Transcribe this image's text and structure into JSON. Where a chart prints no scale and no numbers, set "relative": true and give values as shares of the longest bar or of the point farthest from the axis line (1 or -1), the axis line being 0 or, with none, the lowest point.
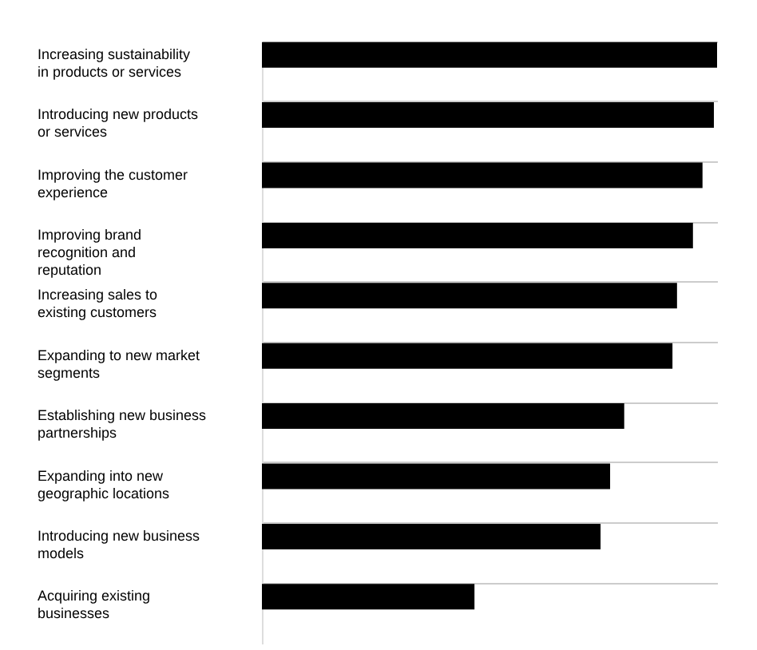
{
  "chart_data": {
    "type": "bar",
    "orientation": "horizontal",
    "relative": true,
    "grid": true,
    "categories": [
      "Increasing sustainability in products or services",
      "Introducing new products or services",
      "Improving the customer experience",
      "Improving brand recognition and reputation",
      "Increasing sales to existing customers",
      "Expanding to new market segments",
      "Establishing new business partnerships",
      "Expanding into new geographic locations",
      "Introducing new business models",
      "Acquiring existing businesses"
    ],
    "values": [
      1,
      0.993,
      0.968,
      0.947,
      0.912,
      0.902,
      0.796,
      0.765,
      0.744,
      0.467
    ],
    "color": "#000000"
  }
}
